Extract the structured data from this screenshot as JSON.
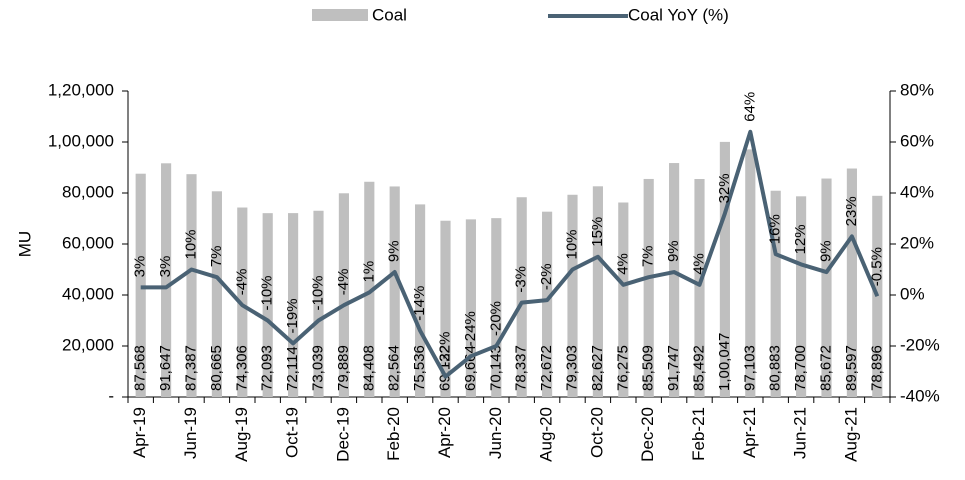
{
  "chart_data": {
    "type": "bar",
    "y_label": "MU",
    "categories": [
      "Apr-19",
      null,
      "Jun-19",
      null,
      "Aug-19",
      null,
      "Oct-19",
      null,
      "Dec-19",
      null,
      "Feb-20",
      null,
      "Apr-20",
      null,
      "Jun-20",
      null,
      "Aug-20",
      null,
      "Oct-20",
      null,
      "Dec-20",
      null,
      "Feb-21",
      null,
      "Apr-21",
      null,
      "Jun-21",
      null,
      "Aug-21",
      null
    ],
    "series": [
      {
        "name": "Coal",
        "type": "bar",
        "color": "#bfbfbf",
        "values": [
          87568,
          91647,
          87387,
          80665,
          74306,
          72093,
          72114,
          73039,
          79889,
          84408,
          82564,
          75536,
          69122,
          69664,
          70143,
          78337,
          72672,
          79303,
          82627,
          76275,
          85509,
          91747,
          85492,
          100047,
          97103,
          80883,
          78700,
          85672,
          89597,
          78896
        ],
        "value_labels": [
          "87,568",
          "91,647",
          "87,387",
          "80,665",
          "74,306",
          "72,093",
          "72,114",
          "73,039",
          "79,889",
          "84,408",
          "82,564",
          "75,536",
          "69,122",
          "69,664",
          "70,143",
          "78,337",
          "72,672",
          "79,303",
          "82,627",
          "76,275",
          "85,509",
          "91,747",
          "85,492",
          "1,00,047",
          "97,103",
          "80,883",
          "78,700",
          "85,672",
          "89,597",
          "78,896"
        ]
      },
      {
        "name": "Coal YoY (%)",
        "type": "line",
        "axis": "y2",
        "color": "#4a6274",
        "values": [
          3,
          3,
          10,
          7,
          -4,
          -10,
          -19,
          -10,
          -4,
          1,
          9,
          -14,
          -32,
          -24,
          -20,
          -3,
          -2,
          10,
          15,
          4,
          7,
          9,
          4,
          32,
          64,
          16,
          12,
          9,
          23,
          -0.5
        ],
        "value_labels": [
          "3%",
          "3%",
          "10%",
          "7%",
          "-4%",
          "-10%",
          "-19%",
          "-10%",
          "-4%",
          "1%",
          "9%",
          "-14%",
          "-32%",
          "-24%",
          "-20%",
          "-3%",
          "-2%",
          "10%",
          "15%",
          "4%",
          "7%",
          "9%",
          "4%",
          "32%",
          "64%",
          "16%",
          "12%",
          "9%",
          "23%",
          "-0.5%"
        ]
      }
    ],
    "ylim": [
      0,
      120000
    ],
    "yticks": [
      {
        "value": 0,
        "label": "-"
      },
      {
        "value": 20000,
        "label": "20,000"
      },
      {
        "value": 40000,
        "label": "40,000"
      },
      {
        "value": 60000,
        "label": "60,000"
      },
      {
        "value": 80000,
        "label": "80,000"
      },
      {
        "value": 100000,
        "label": "1,00,000"
      },
      {
        "value": 120000,
        "label": "1,20,000"
      }
    ],
    "y2lim": [
      -40,
      80
    ],
    "y2ticks": [
      {
        "value": -40,
        "label": "-40%"
      },
      {
        "value": -20,
        "label": "-20%"
      },
      {
        "value": 0,
        "label": "0%"
      },
      {
        "value": 20,
        "label": "20%"
      },
      {
        "value": 40,
        "label": "40%"
      },
      {
        "value": 60,
        "label": "60%"
      },
      {
        "value": 80,
        "label": "80%"
      }
    ],
    "legend": "top"
  }
}
